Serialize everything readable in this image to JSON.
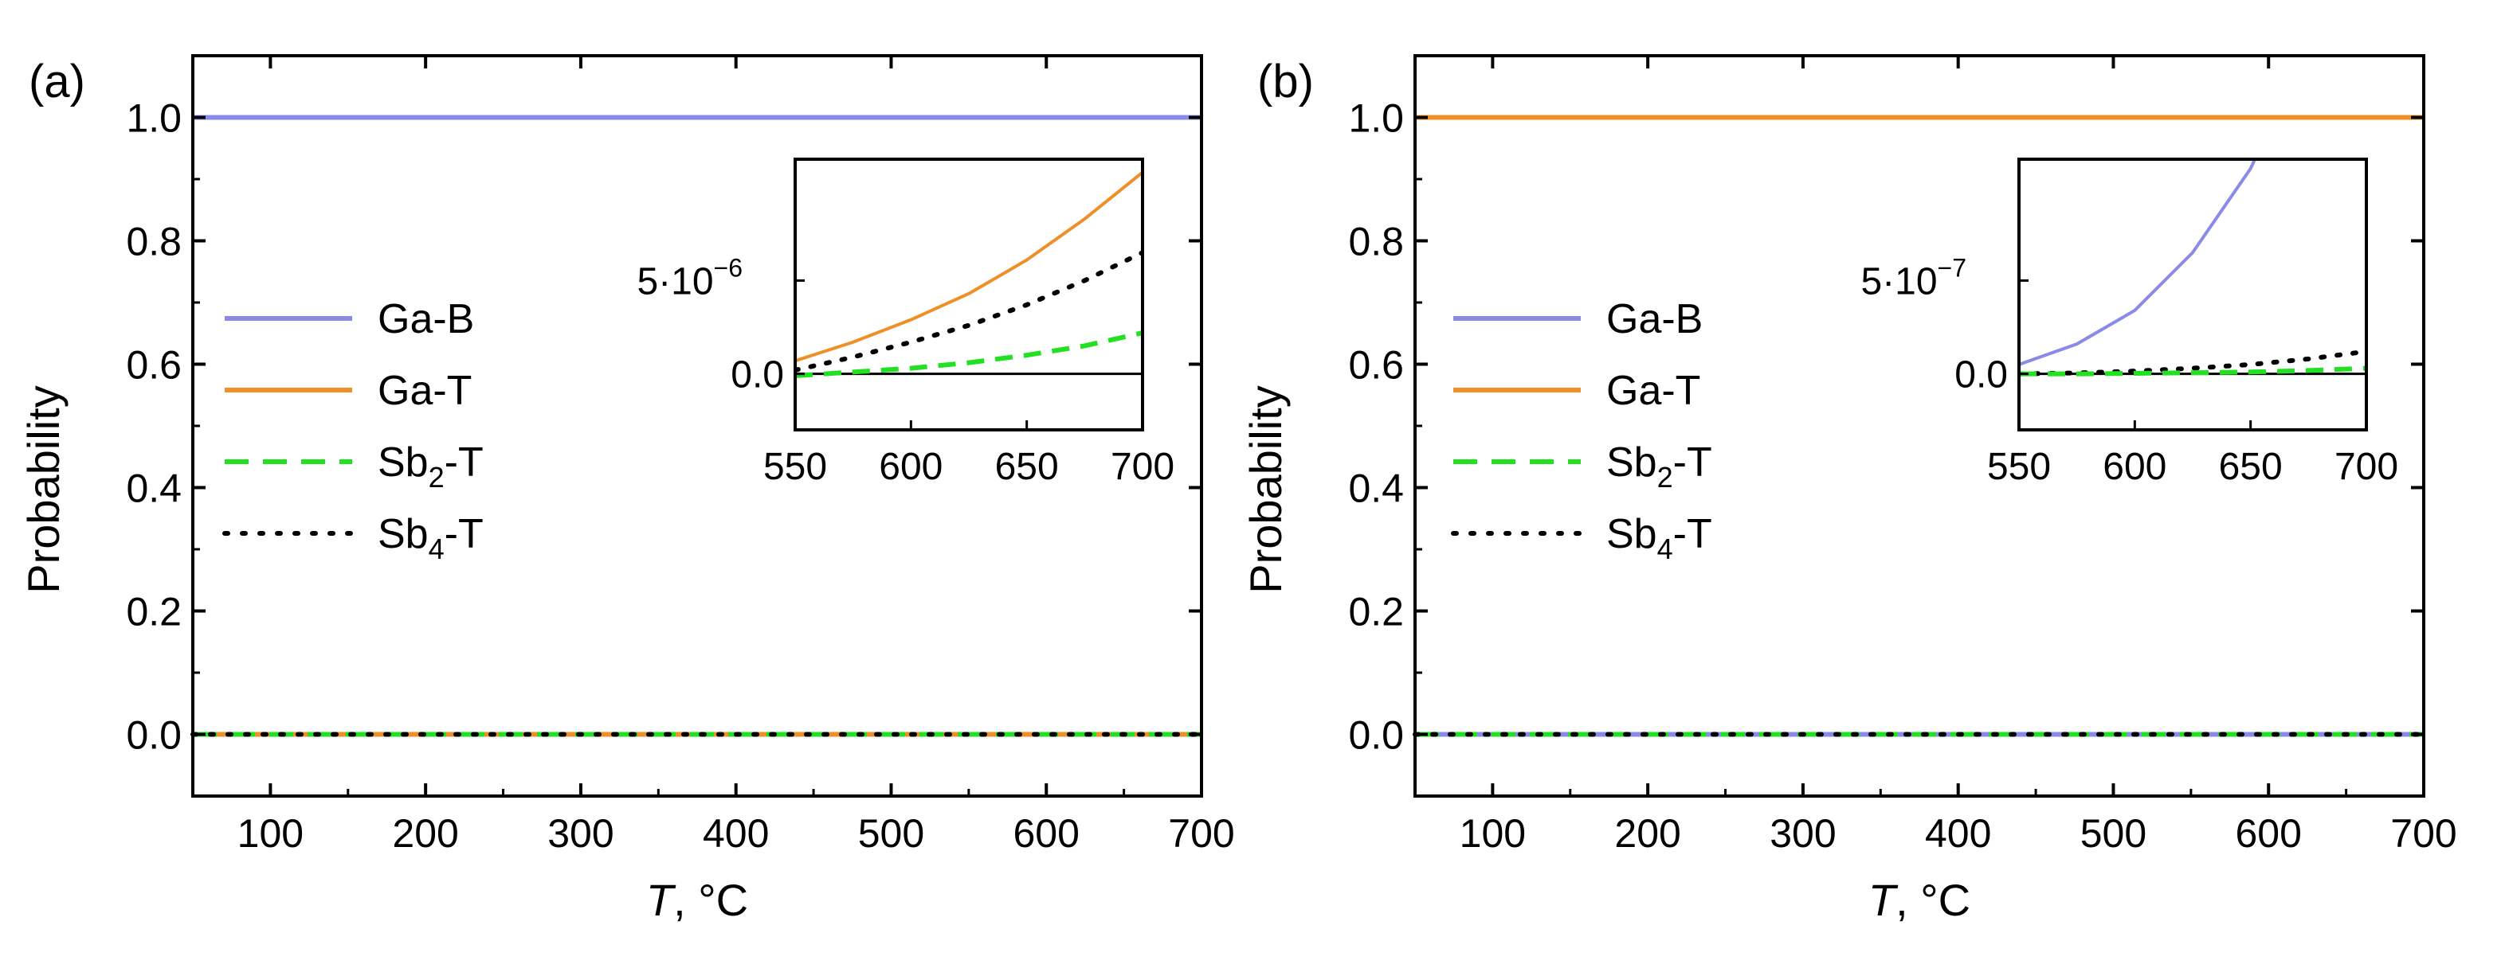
{
  "colors": {
    "ga_b": "#8a8ae8",
    "ga_t": "#ee8f28",
    "sb2_t": "#22e022",
    "sb4_t": "#000000"
  },
  "chart_data": [
    {
      "type": "line",
      "panel_label": "(a)",
      "xlabel_var": "T",
      "xlabel_rest": ", °C",
      "ylabel": "Probability",
      "xlim": [
        50,
        700
      ],
      "ylim": [
        -0.1,
        1.1
      ],
      "xticks": [
        "100",
        "200",
        "300",
        "400",
        "500",
        "600",
        "700"
      ],
      "yticks": [
        "0.0",
        "0.2",
        "0.4",
        "0.6",
        "0.8",
        "1.0"
      ],
      "legend_position": "middle-left",
      "series": [
        {
          "name": "Ga-B",
          "style": "solid",
          "color_key": "ga_b",
          "x": [
            50,
            700
          ],
          "y": [
            1.0,
            1.0
          ]
        },
        {
          "name": "Ga-T",
          "style": "solid",
          "color_key": "ga_t",
          "x": [
            50,
            700
          ],
          "y": [
            0.0,
            0.0
          ]
        },
        {
          "name": "Sb2-T",
          "name_main": "Sb",
          "name_sub": "2",
          "name_rest": "-T",
          "style": "dashed",
          "color_key": "sb2_t",
          "x": [
            50,
            700
          ],
          "y": [
            0.0,
            0.0
          ]
        },
        {
          "name": "Sb4-T",
          "name_main": "Sb",
          "name_sub": "4",
          "name_rest": "-T",
          "style": "dotted",
          "color_key": "sb4_t",
          "x": [
            50,
            700
          ],
          "y": [
            0.0,
            0.0
          ]
        }
      ],
      "inset": {
        "xlim": [
          550,
          700
        ],
        "xticks": [
          "550",
          "600",
          "650",
          "700"
        ],
        "ylim": [
          -3e-06,
          1.15e-05
        ],
        "ytick_values": [
          0,
          5e-06
        ],
        "ytick_labels": [
          "0.0",
          "5·10"
        ],
        "ytick_exponents": [
          "",
          "−6"
        ],
        "series": [
          {
            "name": "Ga-T",
            "color_key": "ga_t",
            "style": "solid",
            "x": [
              550,
              575,
              600,
              625,
              650,
              675,
              700
            ],
            "y": [
              7e-07,
              1.7e-06,
              2.9e-06,
              4.3e-06,
              6.1e-06,
              8.3e-06,
              1.08e-05
            ]
          },
          {
            "name": "Sb4-T",
            "color_key": "sb4_t",
            "style": "dotted",
            "x": [
              550,
              575,
              600,
              625,
              650,
              675,
              700
            ],
            "y": [
              2e-07,
              9e-07,
              1.7e-06,
              2.6e-06,
              3.7e-06,
              5e-06,
              6.5e-06
            ]
          },
          {
            "name": "Sb2-T",
            "color_key": "sb2_t",
            "style": "dashed",
            "x": [
              550,
              575,
              600,
              625,
              650,
              675,
              700
            ],
            "y": [
              -1e-07,
              1e-07,
              3e-07,
              6e-07,
              1e-06,
              1.5e-06,
              2.2e-06
            ]
          }
        ]
      }
    },
    {
      "type": "line",
      "panel_label": "(b)",
      "xlabel_var": "T",
      "xlabel_rest": ", °C",
      "ylabel": "Probability",
      "xlim": [
        50,
        700
      ],
      "ylim": [
        -0.1,
        1.1
      ],
      "xticks": [
        "100",
        "200",
        "300",
        "400",
        "500",
        "600",
        "700"
      ],
      "yticks": [
        "0.0",
        "0.2",
        "0.4",
        "0.6",
        "0.8",
        "1.0"
      ],
      "legend_position": "middle-left",
      "series": [
        {
          "name": "Ga-B",
          "style": "solid",
          "color_key": "ga_b",
          "x": [
            50,
            700
          ],
          "y": [
            0.0,
            0.0
          ]
        },
        {
          "name": "Ga-T",
          "style": "solid",
          "color_key": "ga_t",
          "x": [
            50,
            700
          ],
          "y": [
            1.0,
            1.0
          ]
        },
        {
          "name": "Sb2-T",
          "name_main": "Sb",
          "name_sub": "2",
          "name_rest": "-T",
          "style": "dashed",
          "color_key": "sb2_t",
          "x": [
            50,
            700
          ],
          "y": [
            0.0,
            0.0
          ]
        },
        {
          "name": "Sb4-T",
          "name_main": "Sb",
          "name_sub": "4",
          "name_rest": "-T",
          "style": "dotted",
          "color_key": "sb4_t",
          "x": [
            50,
            700
          ],
          "y": [
            0.0,
            0.0
          ]
        }
      ],
      "inset": {
        "xlim": [
          550,
          700
        ],
        "xticks": [
          "550",
          "600",
          "650",
          "700"
        ],
        "ylim": [
          -3e-07,
          1.15e-06
        ],
        "ytick_values": [
          0,
          5e-07
        ],
        "ytick_labels": [
          "0.0",
          "5·10"
        ],
        "ytick_exponents": [
          "",
          "−7"
        ],
        "series": [
          {
            "name": "Ga-B",
            "color_key": "ga_b",
            "style": "solid",
            "x": [
              550,
              575,
              600,
              625,
              650,
              665
            ],
            "y": [
              5e-08,
              1.6e-07,
              3.4e-07,
              6.5e-07,
              1.1e-06,
              1.5e-06
            ]
          },
          {
            "name": "Sb4-T",
            "color_key": "sb4_t",
            "style": "dotted",
            "x": [
              550,
              575,
              600,
              625,
              650,
              675,
              700
            ],
            "y": [
              0.0,
              5e-09,
              1.5e-08,
              3e-08,
              5e-08,
              8e-08,
              1.2e-07
            ]
          },
          {
            "name": "Sb2-T",
            "color_key": "sb2_t",
            "style": "dashed",
            "x": [
              550,
              575,
              600,
              625,
              650,
              675,
              700
            ],
            "y": [
              0.0,
              0.0,
              3e-09,
              6e-09,
              1e-08,
              1.8e-08,
              3e-08
            ]
          }
        ]
      }
    }
  ]
}
